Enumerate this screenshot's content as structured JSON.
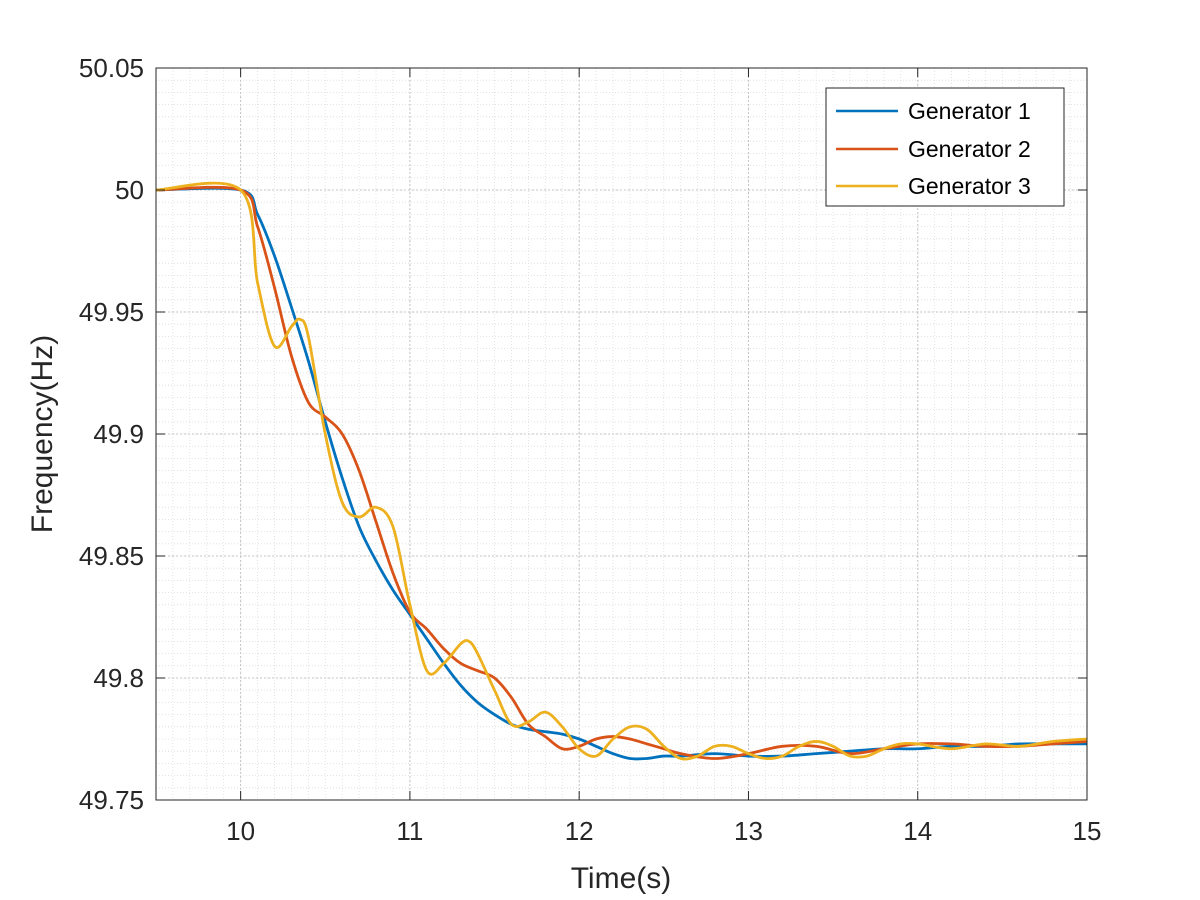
{
  "chart_data": {
    "type": "line",
    "title": "",
    "xlabel": "Time(s)",
    "ylabel": "Frequency(Hz)",
    "xlim": [
      9.5,
      15
    ],
    "ylim": [
      49.75,
      50.05
    ],
    "xticks": [
      10,
      11,
      12,
      13,
      14,
      15
    ],
    "yticks": [
      49.75,
      49.8,
      49.85,
      49.9,
      49.95,
      50,
      50.05
    ],
    "xtick_labels": [
      "10",
      "11",
      "12",
      "13",
      "14",
      "15"
    ],
    "ytick_labels": [
      "49.75",
      "49.8",
      "49.85",
      "49.9",
      "49.95",
      "50",
      "50.05"
    ],
    "grid": "major and minor, dotted",
    "legend_position": "top-right",
    "series": [
      {
        "name": "Generator 1",
        "color": "#0072BD",
        "x": [
          9.5,
          10.0,
          10.1,
          10.2,
          10.3,
          10.4,
          10.5,
          10.6,
          10.7,
          10.8,
          10.9,
          11.0,
          11.1,
          11.2,
          11.3,
          11.4,
          11.5,
          11.6,
          11.7,
          11.8,
          11.9,
          12.0,
          12.1,
          12.2,
          12.3,
          12.4,
          12.5,
          12.6,
          12.8,
          13.0,
          13.2,
          13.4,
          13.6,
          13.8,
          14.0,
          14.2,
          14.4,
          14.6,
          14.8,
          15.0
        ],
        "y": [
          50.0,
          50.0,
          49.99,
          49.973,
          49.952,
          49.93,
          49.905,
          49.882,
          49.862,
          49.848,
          49.836,
          49.826,
          49.816,
          49.806,
          49.797,
          49.79,
          49.785,
          49.781,
          49.779,
          49.778,
          49.777,
          49.775,
          49.772,
          49.769,
          49.767,
          49.767,
          49.768,
          49.768,
          49.769,
          49.768,
          49.768,
          49.769,
          49.77,
          49.771,
          49.771,
          49.772,
          49.772,
          49.773,
          49.773,
          49.773
        ]
      },
      {
        "name": "Generator 2",
        "color": "#D95319",
        "x": [
          9.5,
          10.0,
          10.1,
          10.2,
          10.3,
          10.4,
          10.5,
          10.6,
          10.7,
          10.8,
          10.9,
          11.0,
          11.1,
          11.2,
          11.3,
          11.4,
          11.5,
          11.6,
          11.7,
          11.8,
          11.9,
          12.0,
          12.1,
          12.2,
          12.3,
          12.4,
          12.5,
          12.6,
          12.8,
          13.0,
          13.2,
          13.4,
          13.6,
          13.8,
          14.0,
          14.2,
          14.4,
          14.6,
          14.8,
          15.0
        ],
        "y": [
          50.0,
          50.0,
          49.985,
          49.96,
          49.932,
          49.913,
          49.907,
          49.9,
          49.885,
          49.864,
          49.843,
          49.827,
          49.82,
          49.812,
          49.806,
          49.803,
          49.8,
          49.792,
          49.781,
          49.776,
          49.771,
          49.772,
          49.775,
          49.776,
          49.775,
          49.773,
          49.771,
          49.769,
          49.767,
          49.769,
          49.772,
          49.772,
          49.769,
          49.771,
          49.773,
          49.773,
          49.772,
          49.772,
          49.773,
          49.774
        ]
      },
      {
        "name": "Generator 3",
        "color": "#EDB120",
        "x": [
          9.5,
          10.0,
          10.1,
          10.2,
          10.3,
          10.35,
          10.4,
          10.5,
          10.6,
          10.7,
          10.8,
          10.9,
          11.0,
          11.1,
          11.2,
          11.3,
          11.35,
          11.4,
          11.5,
          11.6,
          11.7,
          11.8,
          11.9,
          12.0,
          12.1,
          12.2,
          12.3,
          12.4,
          12.5,
          12.6,
          12.7,
          12.8,
          12.9,
          13.0,
          13.1,
          13.2,
          13.3,
          13.4,
          13.5,
          13.6,
          13.7,
          13.8,
          13.9,
          14.0,
          14.2,
          14.4,
          14.6,
          14.8,
          15.0
        ],
        "y": [
          50.0,
          50.0,
          49.962,
          49.936,
          49.944,
          49.947,
          49.94,
          49.9,
          49.872,
          49.866,
          49.87,
          49.862,
          49.83,
          49.803,
          49.806,
          49.814,
          49.815,
          49.81,
          49.795,
          49.781,
          49.782,
          49.786,
          49.78,
          49.771,
          49.768,
          49.775,
          49.78,
          49.779,
          49.772,
          49.767,
          49.768,
          49.772,
          49.772,
          49.769,
          49.767,
          49.768,
          49.772,
          49.774,
          49.772,
          49.768,
          49.768,
          49.771,
          49.773,
          49.773,
          49.771,
          49.773,
          49.772,
          49.774,
          49.775
        ]
      }
    ]
  }
}
